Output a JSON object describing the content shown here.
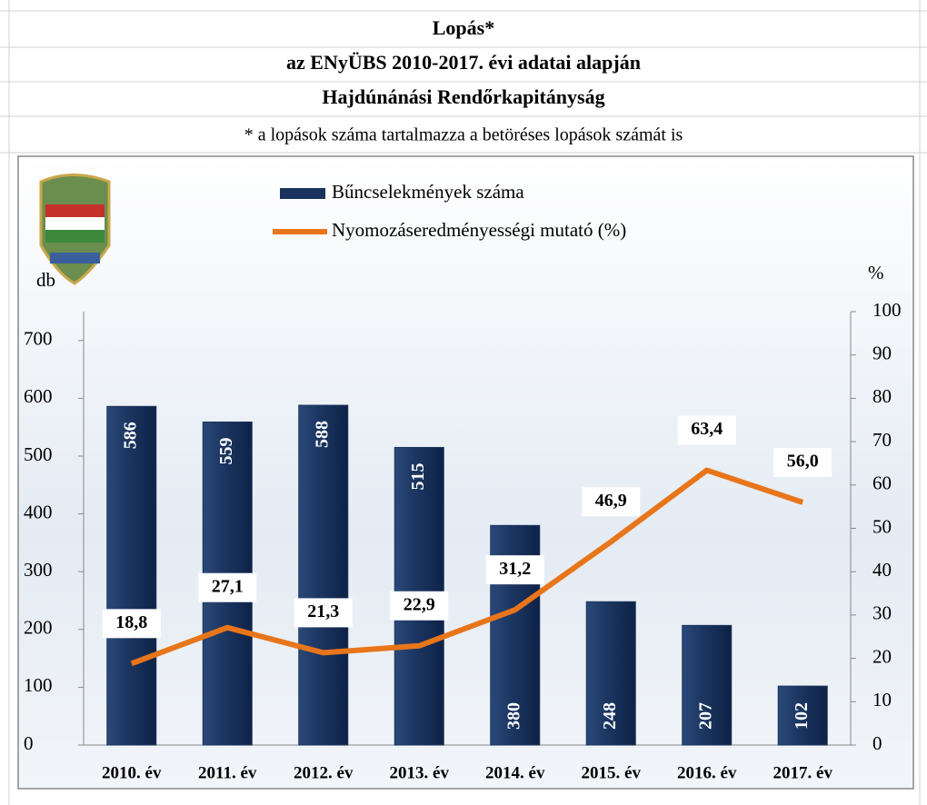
{
  "chart_data": {
    "type": "bar-line",
    "title": "Lopás*",
    "subtitle": "az ENyÜBS 2010-2017. évi adatai alapján",
    "subtitle2": "Hajdúnánási Rendőrkapitányság",
    "note": "* a lopások száma tartalmazza a betöréses lopások számát is",
    "ylabel": "db",
    "y2label": "%",
    "categories": [
      "2010. év",
      "2011. év",
      "2012. év",
      "2013. év",
      "2014. év",
      "2015. év",
      "2016. év",
      "2017. év"
    ],
    "series": [
      {
        "name": "Bűncselekmények száma",
        "type": "bar",
        "color": "#1a335e",
        "values": [
          586,
          559,
          588,
          515,
          380,
          248,
          207,
          102
        ]
      },
      {
        "name": "Nyomozáseredményességi mutató (%)",
        "type": "line",
        "axis": "y2",
        "color": "#e8751a",
        "values": [
          18.8,
          27.1,
          21.3,
          22.9,
          31.2,
          46.9,
          63.4,
          56.0
        ],
        "value_labels": [
          "18,8",
          "27,1",
          "21,3",
          "22,9",
          "31,2",
          "46,9",
          "63,4",
          "56,0"
        ]
      }
    ],
    "ylim": [
      0,
      750
    ],
    "yticks": [
      0,
      100,
      200,
      300,
      400,
      500,
      600,
      700
    ],
    "y2lim": [
      0,
      100
    ],
    "y2ticks": [
      0,
      10,
      20,
      30,
      40,
      50,
      60,
      70,
      80,
      90,
      100
    ]
  }
}
